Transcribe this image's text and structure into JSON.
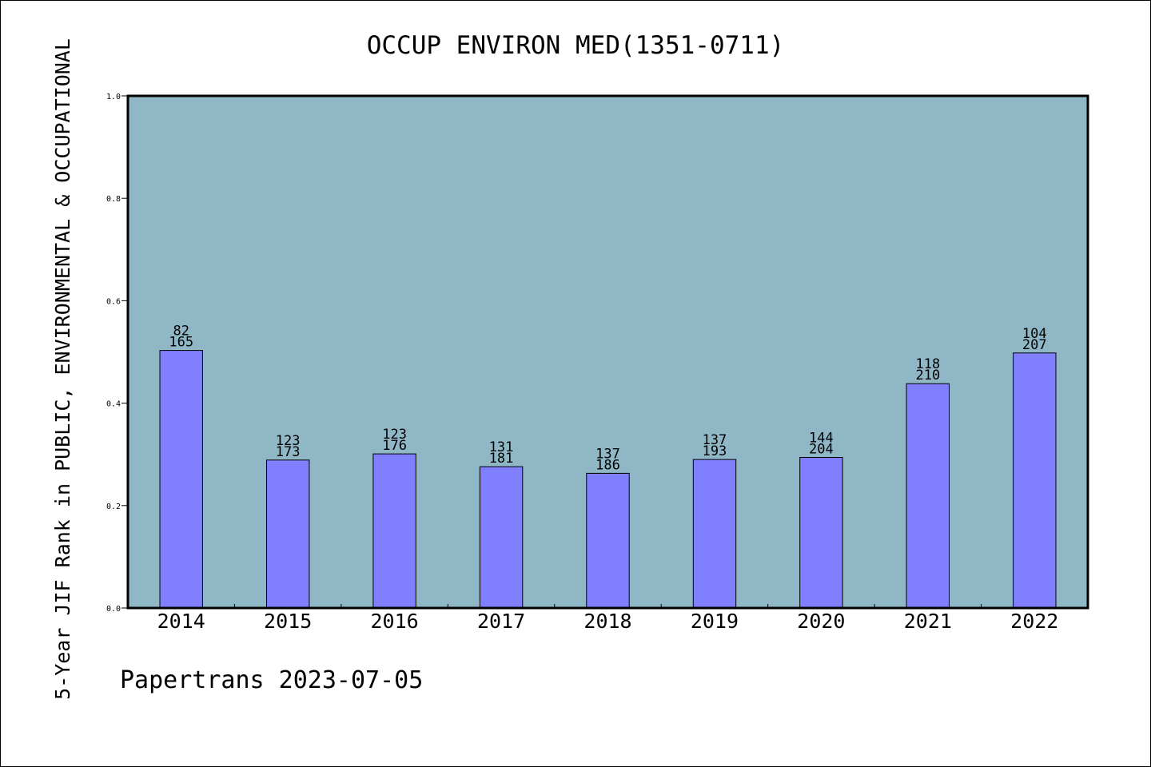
{
  "chart_data": {
    "type": "bar",
    "title": "OCCUP ENVIRON MED(1351-0711)",
    "ylabel": "5-Year JIF Rank in PUBLIC, ENVIRONMENTAL & OCCUPATIONAL",
    "xlabel": "",
    "categories": [
      "2014",
      "2015",
      "2016",
      "2017",
      "2018",
      "2019",
      "2020",
      "2021",
      "2022"
    ],
    "values": [
      0.503,
      0.289,
      0.301,
      0.276,
      0.263,
      0.29,
      0.294,
      0.438,
      0.498
    ],
    "bar_labels_top": [
      "82",
      "123",
      "123",
      "131",
      "137",
      "137",
      "144",
      "118",
      "104"
    ],
    "bar_labels_bottom": [
      "165",
      "173",
      "176",
      "181",
      "186",
      "193",
      "204",
      "210",
      "207"
    ],
    "ylim": [
      0.0,
      1.0
    ],
    "yticks": [
      "0.0",
      "0.2",
      "0.4",
      "0.6",
      "0.8",
      "1.0"
    ],
    "grid": false,
    "colors": {
      "plot_background": "#8fb7c6",
      "bar_fill": "#8080ff",
      "bar_edge": "#000000"
    }
  },
  "footer": {
    "text": "Papertrans 2023-07-05"
  }
}
